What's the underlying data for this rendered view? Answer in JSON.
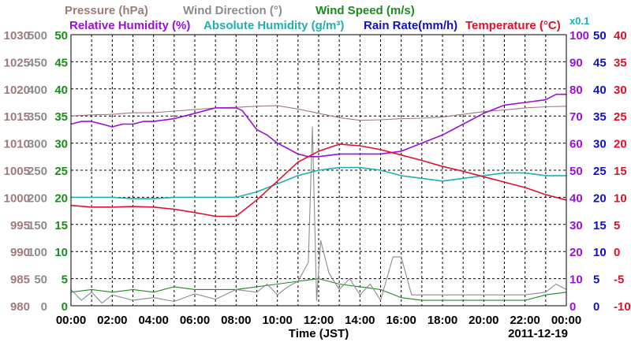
{
  "chart_data": {
    "type": "line",
    "date": "2011-12-19",
    "xlabel": "Time (JST)",
    "x_ticks": [
      "00:00",
      "02:00",
      "04:00",
      "06:00",
      "08:00",
      "10:00",
      "12:00",
      "14:00",
      "16:00",
      "18:00",
      "20:00",
      "22:00",
      "00:00"
    ],
    "x_range_hours": [
      0,
      24
    ],
    "grid": true,
    "legend": {
      "row1": [
        {
          "label": "Pressure (hPa)",
          "color": "#a07a7a"
        },
        {
          "label": "Wind Direction (°)",
          "color": "#8c8c8c"
        },
        {
          "label": "Wind Speed (m/s)",
          "color": "#1a8c1a"
        }
      ],
      "row2": [
        {
          "label": "Relative Humidity (%)",
          "color": "#9a10d8"
        },
        {
          "label": "Absolute Humidity (g/m³)",
          "color": "#20b0b0"
        },
        {
          "label": "Rain Rate(mm/h)",
          "color": "#1010c8"
        },
        {
          "label": "Temperature (°C)",
          "color": "#e0102a"
        }
      ],
      "multiplier": "x0.1"
    },
    "axes": {
      "pressure": {
        "color": "#a07a7a",
        "ticks": [
          "1030",
          "1025",
          "1020",
          "1015",
          "1010",
          "1005",
          "1000",
          "995",
          "990",
          "985",
          "980"
        ],
        "range": [
          980,
          1030
        ]
      },
      "wind_direction": {
        "color": "#8c8c8c",
        "ticks": [
          "500",
          "450",
          "400",
          "350",
          "300",
          "250",
          "200",
          "150",
          "100",
          "50",
          "0"
        ],
        "range": [
          0,
          500
        ]
      },
      "wind_speed": {
        "color": "#1a8c1a",
        "ticks": [
          "50",
          "45",
          "40",
          "35",
          "30",
          "25",
          "20",
          "15",
          "10",
          "5",
          "0"
        ],
        "range": [
          0,
          50
        ]
      },
      "humidity": {
        "color": "#9a10d8",
        "ticks": [
          "100",
          "90",
          "80",
          "70",
          "60",
          "50",
          "40",
          "30",
          "20",
          "10",
          "0"
        ],
        "range": [
          0,
          100
        ]
      },
      "rain_rate": {
        "color": "#1010c8",
        "ticks": [
          "50",
          "45",
          "40",
          "35",
          "30",
          "25",
          "20",
          "15",
          "10",
          "5",
          "0"
        ],
        "range": [
          0,
          50
        ]
      },
      "temperature": {
        "color": "#e0102a",
        "ticks": [
          "40",
          "35",
          "30",
          "25",
          "20",
          "15",
          "10",
          "5",
          "0",
          "-5",
          "-10"
        ],
        "range": [
          -10,
          40
        ]
      }
    },
    "series": [
      {
        "name": "Pressure (hPa)",
        "axis": "pressure",
        "color": "#a07a7a",
        "x": [
          0,
          1,
          2,
          3,
          4,
          5,
          6,
          7,
          8,
          9,
          10,
          11,
          12,
          13,
          14,
          15,
          16,
          17,
          18,
          19,
          20,
          21,
          22,
          23,
          24
        ],
        "y": [
          1015,
          1015.2,
          1015.3,
          1015.6,
          1015.6,
          1015.9,
          1016.2,
          1016.5,
          1016.6,
          1016.8,
          1016.9,
          1016.3,
          1015.5,
          1014.7,
          1014.2,
          1014.3,
          1014.5,
          1014.6,
          1014.8,
          1015.3,
          1015.8,
          1016.1,
          1016.5,
          1016.7,
          1016.8
        ]
      },
      {
        "name": "Relative Humidity (%)",
        "axis": "humidity",
        "color": "#9a10d8",
        "x": [
          0,
          0.5,
          1,
          1.5,
          2,
          2.5,
          3,
          3.5,
          4,
          5,
          5.5,
          6,
          6.5,
          7,
          7.5,
          8,
          8.3,
          8.7,
          9,
          9.5,
          10,
          10.5,
          11,
          11.5,
          12,
          13,
          14,
          15,
          16,
          17,
          18,
          19,
          20,
          21,
          22,
          23,
          23.5,
          24
        ],
        "y": [
          67,
          68,
          68,
          67,
          66,
          67,
          67,
          68,
          68,
          69,
          70,
          71,
          72,
          73,
          73,
          73,
          72,
          68,
          65,
          63,
          60,
          58,
          56,
          55,
          55,
          56,
          56,
          56,
          57,
          60,
          63,
          67,
          71,
          74,
          75,
          76,
          78,
          78
        ]
      },
      {
        "name": "Absolute Humidity (g/m³)",
        "axis": "humidity",
        "color": "#20b0b0",
        "x": [
          0,
          1,
          2,
          3,
          4,
          5,
          6,
          7,
          8,
          9,
          10,
          11,
          12,
          13,
          14,
          15,
          16,
          17,
          18,
          19,
          20,
          21,
          22,
          23,
          24
        ],
        "y": [
          40,
          40,
          40,
          39.5,
          39.5,
          40,
          40,
          40,
          40,
          42,
          45,
          48,
          50,
          51,
          51,
          50,
          48,
          47,
          46,
          47,
          48,
          49,
          49,
          48,
          48
        ]
      },
      {
        "name": "Temperature (°C)",
        "axis": "temperature",
        "color": "#e0102a",
        "x": [
          0,
          1,
          2,
          3,
          4,
          5,
          6,
          7,
          8,
          9,
          10,
          11,
          12,
          13,
          14,
          15,
          16,
          17,
          18,
          19,
          20,
          21,
          22,
          23,
          24
        ],
        "y": [
          8.5,
          8.2,
          8.2,
          8.3,
          8.2,
          7.8,
          7.2,
          6.5,
          6.5,
          9.5,
          13,
          16.5,
          18.5,
          19.8,
          19.5,
          18.8,
          17.8,
          16.8,
          15.7,
          14.8,
          13.8,
          12.8,
          11.8,
          10.5,
          9.5
        ]
      },
      {
        "name": "Wind Direction (°)",
        "axis": "wind_direction",
        "color": "#8c8c8c",
        "x": [
          0,
          0.5,
          1,
          1.5,
          2,
          3,
          4,
          5,
          6,
          7,
          8,
          9,
          9.5,
          10,
          10.5,
          11,
          11.5,
          11.7,
          11.9,
          12.1,
          12.5,
          13,
          13.5,
          14,
          14.5,
          15,
          15.6,
          16,
          16.5,
          17,
          18,
          19,
          20,
          21,
          22,
          23,
          23.5,
          24
        ],
        "y": [
          30,
          10,
          25,
          5,
          20,
          10,
          15,
          8,
          22,
          12,
          30,
          25,
          40,
          20,
          35,
          45,
          80,
          330,
          10,
          120,
          60,
          30,
          50,
          20,
          40,
          10,
          90,
          90,
          20,
          20,
          20,
          20,
          20,
          20,
          20,
          25,
          40,
          30
        ]
      },
      {
        "name": "Wind Speed (m/s)",
        "axis": "wind_speed",
        "color": "#1a8c1a",
        "x": [
          0,
          1,
          2,
          3,
          4,
          5,
          6,
          7,
          8,
          9,
          10,
          11,
          12,
          13,
          14,
          15,
          16,
          17,
          18,
          19,
          20,
          21,
          22,
          23,
          24
        ],
        "y": [
          2.5,
          3,
          2.5,
          3,
          2.5,
          3.5,
          3,
          3,
          3,
          3.5,
          4,
          4.5,
          5,
          4,
          3.5,
          3,
          1.5,
          1,
          1,
          1,
          1,
          1,
          1,
          2,
          2.5
        ]
      },
      {
        "name": "Rain Rate(mm/h)",
        "axis": "rain_rate",
        "color": "#1010c8",
        "x": [
          0,
          24
        ],
        "y": [
          0,
          0
        ]
      }
    ]
  }
}
